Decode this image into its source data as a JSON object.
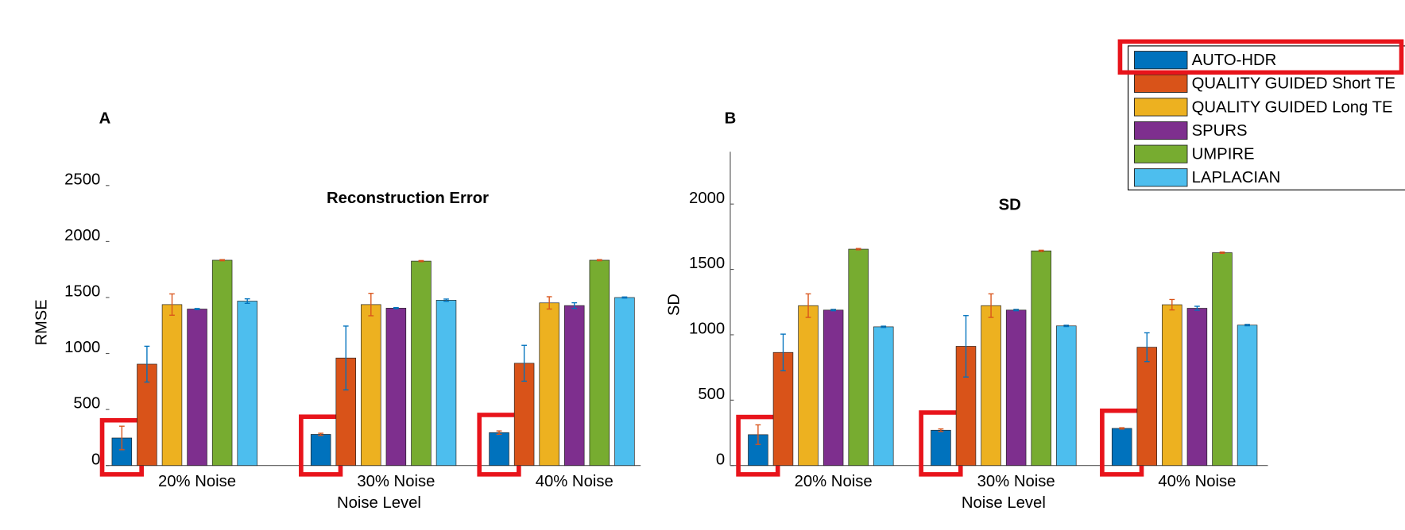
{
  "chart_data": [
    {
      "type": "bar",
      "panel_label": "A",
      "title": "Reconstruction Error",
      "xlabel": "Noise Level",
      "ylabel": "RMSE",
      "categories": [
        "20% Noise",
        "30% Noise",
        "40% Noise"
      ],
      "series": [
        {
          "name": "AUTO-HDR",
          "color": "#0072bd",
          "values": [
            246,
            278,
            294
          ],
          "errors": [
            105,
            10,
            15
          ]
        },
        {
          "name": "QUALITY GUIDED Short TE",
          "color": "#d95319",
          "values": [
            905,
            960,
            913
          ],
          "errors": [
            160,
            285,
            160
          ]
        },
        {
          "name": "QUALITY GUIDED Long TE",
          "color": "#edb120",
          "values": [
            1437,
            1437,
            1452
          ],
          "errors": [
            95,
            100,
            55
          ]
        },
        {
          "name": "SPURS",
          "color": "#7e2f8e",
          "values": [
            1397,
            1405,
            1428
          ],
          "errors": [
            5,
            5,
            25
          ]
        },
        {
          "name": "UMPIRE",
          "color": "#77ac30",
          "values": [
            1833,
            1825,
            1833
          ],
          "errors": [
            5,
            5,
            5
          ]
        },
        {
          "name": "LAPLACIAN",
          "color": "#4dbeee",
          "values": [
            1468,
            1476,
            1500
          ],
          "errors": [
            20,
            10,
            5
          ]
        }
      ],
      "ylim": [
        0,
        2500
      ],
      "yticks": [
        0,
        500,
        1000,
        1500,
        2000,
        2500
      ]
    },
    {
      "type": "bar",
      "panel_label": "B",
      "title": "SD",
      "xlabel": "Noise Level",
      "ylabel": "SD",
      "categories": [
        "20% Noise",
        "30% Noise",
        "40% Noise"
      ],
      "series": [
        {
          "name": "AUTO-HDR",
          "color": "#0072bd",
          "values": [
            236,
            270,
            284
          ],
          "errors": [
            75,
            10,
            5
          ]
        },
        {
          "name": "QUALITY GUIDED Short TE",
          "color": "#d95319",
          "values": [
            865,
            912,
            905
          ],
          "errors": [
            140,
            235,
            110
          ]
        },
        {
          "name": "QUALITY GUIDED Long TE",
          "color": "#edb120",
          "values": [
            1223,
            1223,
            1230
          ],
          "errors": [
            90,
            90,
            40
          ]
        },
        {
          "name": "SPURS",
          "color": "#7e2f8e",
          "values": [
            1189,
            1189,
            1203
          ],
          "errors": [
            5,
            5,
            15
          ]
        },
        {
          "name": "UMPIRE",
          "color": "#77ac30",
          "values": [
            1655,
            1642,
            1628
          ],
          "errors": [
            5,
            5,
            5
          ]
        },
        {
          "name": "LAPLACIAN",
          "color": "#4dbeee",
          "values": [
            1061,
            1068,
            1074
          ],
          "errors": [
            5,
            5,
            5
          ]
        }
      ],
      "ylim": [
        0,
        2400
      ],
      "yticks": [
        0,
        500,
        1000,
        1500,
        2000
      ]
    }
  ]
}
